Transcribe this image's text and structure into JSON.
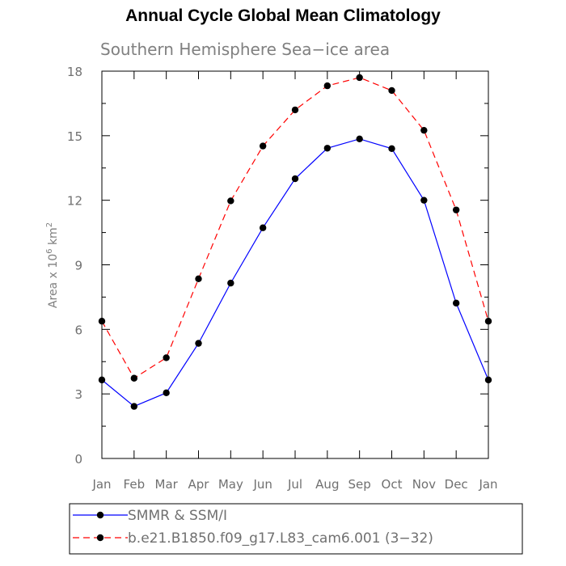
{
  "title": "Annual Cycle Global Mean Climatology",
  "chart_data": {
    "type": "line",
    "subtitle": "Southern Hemisphere Sea−ice area",
    "ylabel_prefix": "Area x 10",
    "ylabel_exp1": "6",
    "ylabel_mid": " km",
    "ylabel_exp2": "2",
    "categories": [
      "Jan",
      "Feb",
      "Mar",
      "Apr",
      "May",
      "Jun",
      "Jul",
      "Aug",
      "Sep",
      "Oct",
      "Nov",
      "Dec",
      "Jan"
    ],
    "yticks": [
      "0",
      "3",
      "6",
      "9",
      "12",
      "15",
      "18"
    ],
    "ylim": [
      0,
      18
    ],
    "series": [
      {
        "name": "SMMR & SSM/I",
        "color": "#0000ff",
        "dash": "solid",
        "values": [
          3.65,
          2.42,
          3.05,
          5.35,
          8.15,
          10.72,
          13.0,
          14.42,
          14.85,
          14.4,
          12.0,
          7.22,
          3.65
        ]
      },
      {
        "name": "b.e21.B1850.f09_g17.L83_cam6.001 (3−32)",
        "color": "#ff0000",
        "dash": "dashed",
        "values": [
          6.38,
          3.73,
          4.68,
          8.35,
          11.97,
          14.52,
          16.2,
          17.32,
          17.7,
          17.1,
          15.25,
          11.55,
          6.38
        ]
      }
    ],
    "grid": false,
    "legend_position": "bottom"
  }
}
